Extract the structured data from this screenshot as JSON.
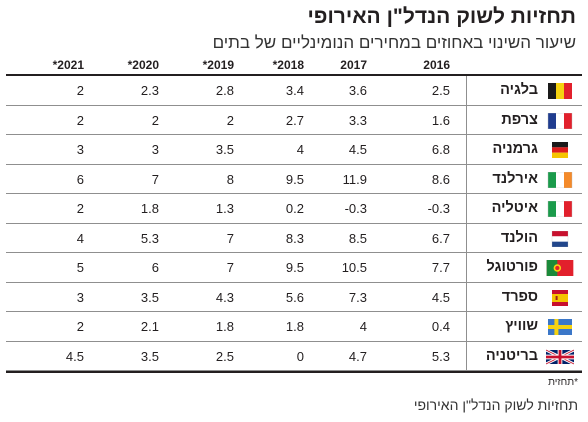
{
  "title": "תחזיות לשוק הנדל\"ן האירופי",
  "subtitle": "שיעור השינוי באחוזים במחירים הנומינליים של בתים",
  "years": [
    "2016",
    "2017",
    "*2018",
    "*2019",
    "*2020",
    "*2021"
  ],
  "rows": [
    {
      "country": "בלגיה",
      "flag": "belgium-flag-icon",
      "values": [
        "2.5",
        "3.6",
        "3.4",
        "2.8",
        "2.3",
        "2"
      ]
    },
    {
      "country": "צרפת",
      "flag": "france-flag-icon",
      "values": [
        "1.6",
        "3.3",
        "2.7",
        "2",
        "2",
        "2"
      ]
    },
    {
      "country": "גרמניה",
      "flag": "germany-flag-icon",
      "values": [
        "6.8",
        "4.5",
        "4",
        "3.5",
        "3",
        "3"
      ]
    },
    {
      "country": "אירלנד",
      "flag": "ireland-flag-icon",
      "values": [
        "8.6",
        "11.9",
        "9.5",
        "8",
        "7",
        "6"
      ]
    },
    {
      "country": "איטליה",
      "flag": "italy-flag-icon",
      "values": [
        "-0.3",
        "-0.3",
        "0.2",
        "1.3",
        "1.8",
        "2"
      ]
    },
    {
      "country": "הולנד",
      "flag": "netherlands-flag-icon",
      "values": [
        "6.7",
        "8.5",
        "8.3",
        "7",
        "5.3",
        "4"
      ]
    },
    {
      "country": "פורטוגל",
      "flag": "portugal-flag-icon",
      "values": [
        "7.7",
        "10.5",
        "9.5",
        "7",
        "6",
        "5"
      ]
    },
    {
      "country": "ספרד",
      "flag": "spain-flag-icon",
      "values": [
        "4.5",
        "7.3",
        "5.6",
        "4.3",
        "3.5",
        "3"
      ]
    },
    {
      "country": "שוויץ",
      "flag": "switzerland-flag-icon",
      "values": [
        "0.4",
        "4",
        "1.8",
        "1.8",
        "2.1",
        "2"
      ]
    },
    {
      "country": "בריטניה",
      "flag": "uk-flag-icon",
      "values": [
        "5.3",
        "4.7",
        "0",
        "2.5",
        "3.5",
        "4.5"
      ]
    }
  ],
  "footnote": "*תחזית",
  "source": "תחזיות לשוק הנדל\"ן האירופי",
  "colors": {
    "text": "#231f20",
    "rule": "#8f8f8f"
  }
}
